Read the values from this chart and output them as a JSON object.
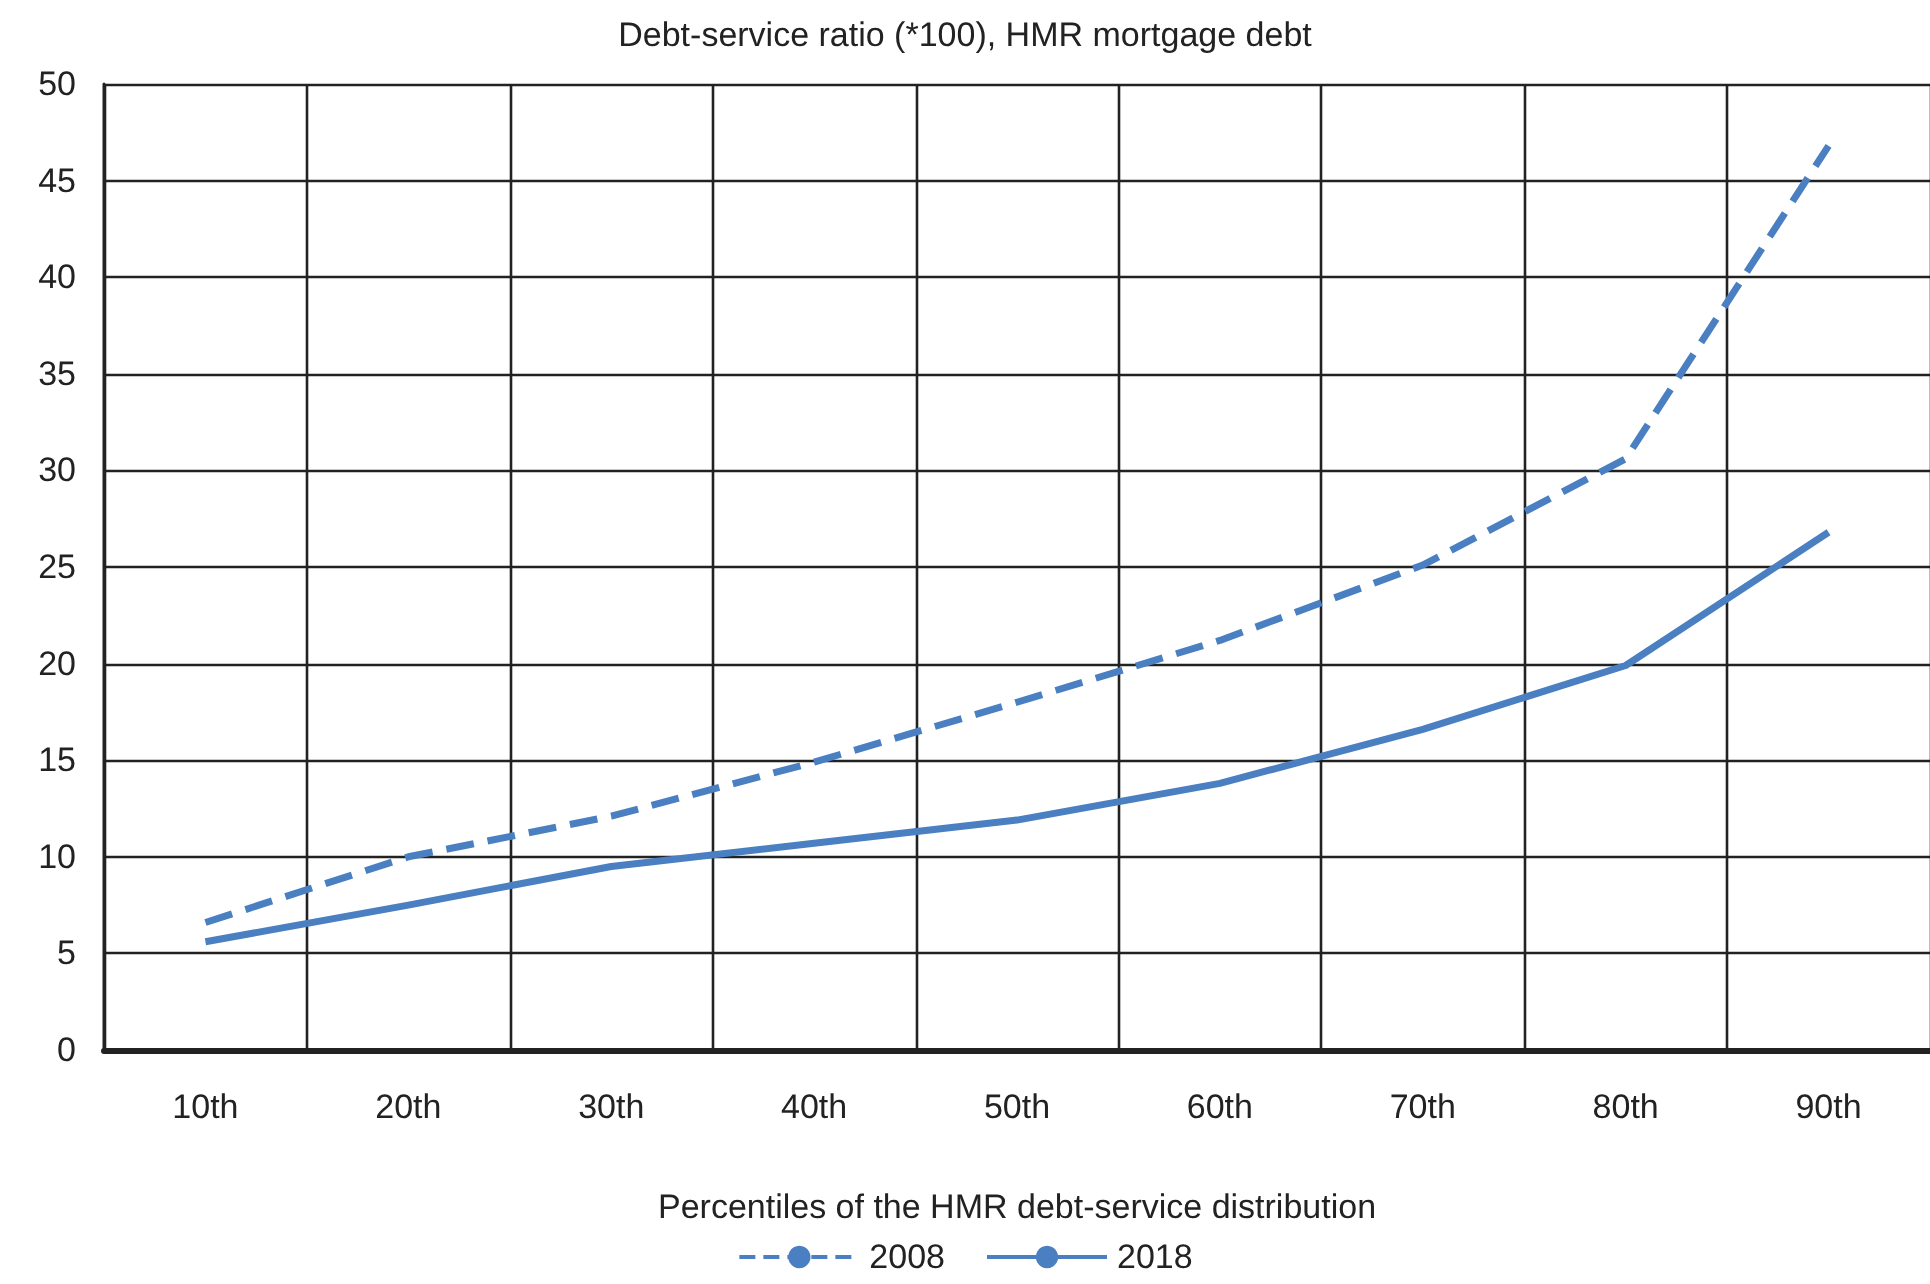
{
  "chart_data": {
    "type": "line",
    "title": "Debt-service ratio (*100), HMR mortgage debt",
    "xlabel": "Percentiles of the HMR debt-service distribution",
    "categories": [
      "10th",
      "20th",
      "30th",
      "40th",
      "50th",
      "60th",
      "70th",
      "80th",
      "90th"
    ],
    "series": [
      {
        "name": "2008",
        "color": "#4a7fc1",
        "line_style": "dashed",
        "values": [
          6.6,
          10.0,
          12.1,
          14.9,
          18.0,
          21.2,
          25.1,
          30.6,
          46.8
        ]
      },
      {
        "name": "2018",
        "color": "#4a7fc1",
        "line_style": "solid",
        "values": [
          5.6,
          7.5,
          9.5,
          10.7,
          11.9,
          13.8,
          16.6,
          19.9,
          26.8
        ]
      }
    ],
    "ylim": [
      0,
      50
    ],
    "yticks": [
      0,
      5,
      10,
      15,
      20,
      25,
      30,
      35,
      40,
      45,
      50
    ],
    "grid": true,
    "legend": "bottom",
    "marker": "none"
  }
}
